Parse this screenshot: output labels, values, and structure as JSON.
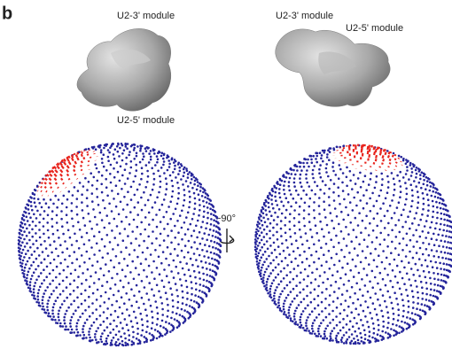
{
  "panel_label": "b",
  "views": [
    {
      "labels": [
        "U2-3' module",
        "U2-5' module"
      ]
    },
    {
      "labels": [
        "U2-3' module",
        "U2-5' module"
      ]
    }
  ],
  "rotation_label": "~90°"
}
